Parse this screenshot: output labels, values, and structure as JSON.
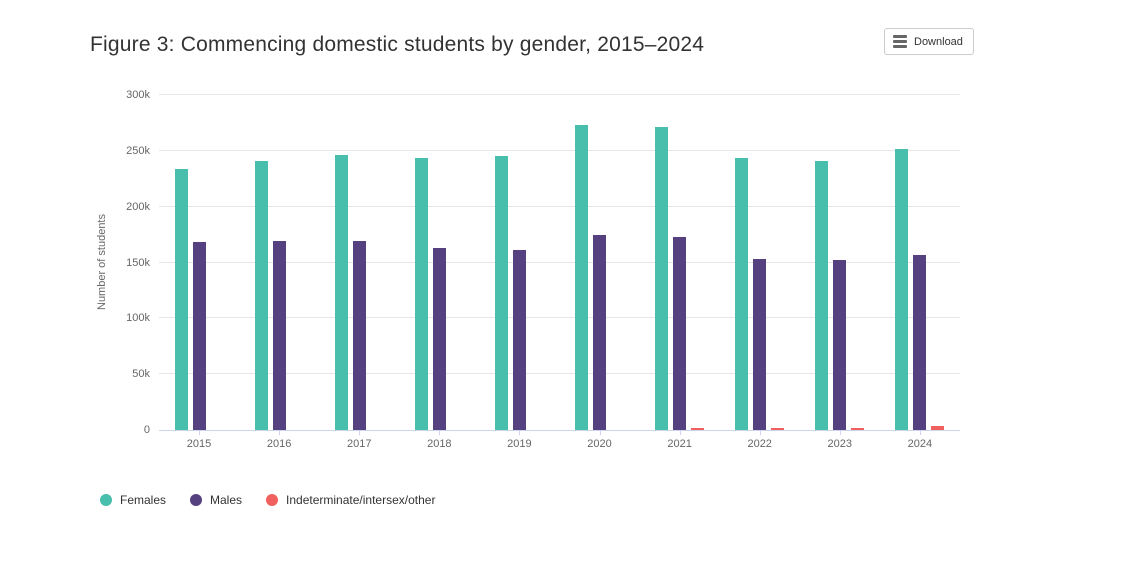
{
  "header": {
    "title": "Figure 3: Commencing domestic students by gender, 2015–2024",
    "download_label": "Download"
  },
  "chart_data": {
    "type": "bar",
    "title": "Figure 3: Commencing domestic students by gender, 2015–2024",
    "xlabel": "",
    "ylabel": "Number of students",
    "ylim": [
      0,
      300000
    ],
    "ytick_values": [
      0,
      50000,
      100000,
      150000,
      200000,
      250000,
      300000
    ],
    "ytick_labels": [
      "0",
      "50k",
      "100k",
      "150k",
      "200k",
      "250k",
      "300k"
    ],
    "categories": [
      "2015",
      "2016",
      "2017",
      "2018",
      "2019",
      "2020",
      "2021",
      "2022",
      "2023",
      "2024"
    ],
    "series": [
      {
        "name": "Females",
        "color": "#48beac",
        "values": [
          234000,
          241000,
          246000,
          244000,
          245000,
          273000,
          271000,
          244000,
          241000,
          252000
        ]
      },
      {
        "name": "Males",
        "color": "#564180",
        "values": [
          168000,
          169000,
          169000,
          163000,
          161000,
          175000,
          173000,
          153000,
          152000,
          157000
        ]
      },
      {
        "name": "Indeterminate/intersex/other",
        "color": "#f0605e",
        "values": [
          0,
          0,
          0,
          0,
          0,
          0,
          2000,
          2000,
          2000,
          4000
        ]
      }
    ],
    "grid": true,
    "legend_position": "bottom",
    "colors": {
      "grid": "#e6e6e6",
      "axis_line": "#ccd6eb",
      "axis_text": "#666666",
      "title_text": "#333333",
      "legend_text": "#333333"
    }
  }
}
